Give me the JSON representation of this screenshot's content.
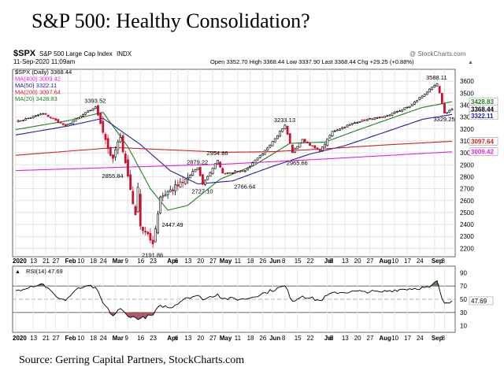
{
  "page": {
    "title": "S&P 500: Healthy Consolidation?",
    "source": "Source: Gerring Capital Partners, StockCharts.com"
  },
  "header": {
    "symbol": "$SPX",
    "description": "S&P 500 Large Cap Index",
    "exchange": "INDX",
    "watermark": "@ StockCharts.com",
    "date_time": "11-Sep-2020 11:09am",
    "quote": "Open 3352.70  High 3368.44  Low 3337.90  Last 3368.44  Chg +29.25 (+0.88%)",
    "ticker_arrow": "▲",
    "legend": [
      {
        "text": "$SPX (Daily) 3368.44",
        "color": "#000000"
      },
      {
        "text": "MA(400) 3009.42",
        "color": "#e020e0"
      },
      {
        "text": "MA(50) 3322.11",
        "color": "#2020a0"
      },
      {
        "text": "MA(200) 3097.64",
        "color": "#d02020"
      },
      {
        "text": "MA(20) 3428.83",
        "color": "#208020"
      }
    ]
  },
  "colors": {
    "up": "#000000",
    "down": "#cc1030",
    "ma20": "#208020",
    "ma50": "#2020a0",
    "ma200": "#d02020",
    "ma400": "#e020e0",
    "rsi_fill_over": "#4a6a40",
    "rsi_fill_under": "#a04050"
  },
  "chart_data": [
    {
      "type": "candlestick",
      "title": "$SPX (Daily)",
      "ylim": [
        2130,
        3700
      ],
      "yticks": [
        2200,
        2300,
        2400,
        2500,
        2600,
        2700,
        2800,
        2900,
        3000,
        3100,
        3200,
        3300,
        3400,
        3500,
        3600
      ],
      "xlabels": [
        "2020",
        "13",
        "21",
        "27",
        "Feb",
        "10",
        "18",
        "24",
        "Mar",
        "9",
        "16",
        "23",
        "Apr",
        "6",
        "13",
        "20",
        "27",
        "May",
        "11",
        "18",
        "26",
        "Jun",
        "8",
        "15",
        "22",
        "Jul",
        "6",
        "13",
        "20",
        "27",
        "Aug",
        "10",
        "17",
        "24",
        "Sep",
        "8"
      ],
      "bold_xlabels": [
        "2020",
        "Feb",
        "Mar",
        "Apr",
        "May",
        "Jun",
        "Jul",
        "Aug",
        "Sep"
      ],
      "x_axis": "trading days from 2 Jan 2020 to 11 Sep 2020",
      "anchors": [
        {
          "date": "2020-01-02",
          "close": 3258
        },
        {
          "date": "2020-01-17",
          "close": 3329
        },
        {
          "date": "2020-01-31",
          "close": 3225
        },
        {
          "date": "2020-02-19",
          "close": 3386
        },
        {
          "date": "2020-02-27",
          "close": 2979
        },
        {
          "date": "2020-02-28",
          "close": 2954
        },
        {
          "date": "2020-03-04",
          "close": 3130
        },
        {
          "date": "2020-03-12",
          "close": 2480
        },
        {
          "date": "2020-03-13",
          "close": 2711
        },
        {
          "date": "2020-03-16",
          "close": 2386
        },
        {
          "date": "2020-03-23",
          "close": 2237
        },
        {
          "date": "2020-03-26",
          "close": 2630
        },
        {
          "date": "2020-04-08",
          "close": 2750
        },
        {
          "date": "2020-04-17",
          "close": 2875
        },
        {
          "date": "2020-04-21",
          "close": 2736
        },
        {
          "date": "2020-04-29",
          "close": 2939
        },
        {
          "date": "2020-05-01",
          "close": 2830
        },
        {
          "date": "2020-05-14",
          "close": 2852
        },
        {
          "date": "2020-05-26",
          "close": 2991
        },
        {
          "date": "2020-06-08",
          "close": 3232
        },
        {
          "date": "2020-06-11",
          "close": 3002
        },
        {
          "date": "2020-06-17",
          "close": 3113
        },
        {
          "date": "2020-06-26",
          "close": 3009
        },
        {
          "date": "2020-07-06",
          "close": 3180
        },
        {
          "date": "2020-07-22",
          "close": 3276
        },
        {
          "date": "2020-08-03",
          "close": 3295
        },
        {
          "date": "2020-08-18",
          "close": 3390
        },
        {
          "date": "2020-09-02",
          "close": 3580
        },
        {
          "date": "2020-09-08",
          "close": 3332
        },
        {
          "date": "2020-09-11",
          "close": 3368
        }
      ],
      "annotations": [
        {
          "label": "3393.52",
          "date": "2020-02-19",
          "value": 3393.52,
          "pos": "above"
        },
        {
          "label": "2855.84",
          "date": "2020-02-28",
          "value": 2855.84,
          "pos": "below"
        },
        {
          "label": "2191.86",
          "date": "2020-03-23",
          "value": 2191.86,
          "pos": "below"
        },
        {
          "label": "2447.49",
          "date": "2020-04-02",
          "value": 2447.49,
          "pos": "below"
        },
        {
          "label": "2879.22",
          "date": "2020-04-17",
          "value": 2879.22,
          "pos": "above"
        },
        {
          "label": "2727.10",
          "date": "2020-04-21",
          "value": 2727.1,
          "pos": "below"
        },
        {
          "label": "2954.86",
          "date": "2020-04-29",
          "value": 2954.86,
          "pos": "above"
        },
        {
          "label": "2766.64",
          "date": "2020-05-14",
          "value": 2766.64,
          "pos": "below"
        },
        {
          "label": "3233.13",
          "date": "2020-06-08",
          "value": 3233.13,
          "pos": "above"
        },
        {
          "label": "2965.66",
          "date": "2020-06-15",
          "value": 2965.66,
          "pos": "below"
        },
        {
          "label": "3588.11",
          "date": "2020-09-02",
          "value": 3588.11,
          "pos": "above"
        },
        {
          "label": "3329.25",
          "date": "2020-09-08",
          "value": 3329.25,
          "pos": "below"
        }
      ],
      "series": [
        {
          "name": "MA(20)",
          "last": 3428.83,
          "label": "3428.83",
          "points": [
            [
              "2020-01-02",
              3195
            ],
            [
              "2020-02-01",
              3270
            ],
            [
              "2020-02-24",
              3340
            ],
            [
              "2020-03-09",
              3050
            ],
            [
              "2020-03-20",
              2700
            ],
            [
              "2020-03-31",
              2520
            ],
            [
              "2020-04-13",
              2560
            ],
            [
              "2020-04-30",
              2780
            ],
            [
              "2020-05-20",
              2900
            ],
            [
              "2020-06-10",
              3080
            ],
            [
              "2020-06-30",
              3090
            ],
            [
              "2020-07-20",
              3190
            ],
            [
              "2020-08-10",
              3300
            ],
            [
              "2020-08-25",
              3380
            ],
            [
              "2020-09-11",
              3428
            ]
          ]
        },
        {
          "name": "MA(50)",
          "last": 3322.11,
          "label": "3322.11",
          "points": [
            [
              "2020-01-02",
              3150
            ],
            [
              "2020-02-01",
              3225
            ],
            [
              "2020-02-24",
              3290
            ],
            [
              "2020-03-16",
              3070
            ],
            [
              "2020-04-01",
              2850
            ],
            [
              "2020-04-17",
              2740
            ],
            [
              "2020-05-07",
              2765
            ],
            [
              "2020-05-29",
              2880
            ],
            [
              "2020-06-22",
              2990
            ],
            [
              "2020-07-13",
              3060
            ],
            [
              "2020-08-05",
              3180
            ],
            [
              "2020-08-25",
              3280
            ],
            [
              "2020-09-11",
              3322
            ]
          ]
        },
        {
          "name": "MA(200)",
          "last": 3097.64,
          "label": "3097.64",
          "points": [
            [
              "2020-01-02",
              2980
            ],
            [
              "2020-03-01",
              3045
            ],
            [
              "2020-04-01",
              3025
            ],
            [
              "2020-05-01",
              3005
            ],
            [
              "2020-06-01",
              3010
            ],
            [
              "2020-07-01",
              3035
            ],
            [
              "2020-08-01",
              3065
            ],
            [
              "2020-09-11",
              3097
            ]
          ]
        },
        {
          "name": "MA(400)",
          "last": 3009.42,
          "label": "3009.42",
          "points": [
            [
              "2020-01-02",
              2852
            ],
            [
              "2020-03-01",
              2878
            ],
            [
              "2020-05-01",
              2905
            ],
            [
              "2020-07-01",
              2950
            ],
            [
              "2020-09-11",
              3009
            ]
          ]
        }
      ],
      "last_label": "3368.44"
    },
    {
      "type": "line",
      "title": "RSI(14)",
      "series": [
        {
          "name": "RSI(14)",
          "last": 47.69,
          "points": [
            [
              "2020-01-02",
              63
            ],
            [
              "2020-01-10",
              70
            ],
            [
              "2020-01-17",
              73
            ],
            [
              "2020-01-27",
              55
            ],
            [
              "2020-01-31",
              48
            ],
            [
              "2020-02-06",
              64
            ],
            [
              "2020-02-12",
              70
            ],
            [
              "2020-02-19",
              68
            ],
            [
              "2020-02-24",
              44
            ],
            [
              "2020-02-28",
              25
            ],
            [
              "2020-03-04",
              36
            ],
            [
              "2020-03-09",
              24
            ],
            [
              "2020-03-16",
              21
            ],
            [
              "2020-03-23",
              26
            ],
            [
              "2020-03-26",
              41
            ],
            [
              "2020-04-01",
              37
            ],
            [
              "2020-04-09",
              52
            ],
            [
              "2020-04-17",
              56
            ],
            [
              "2020-04-21",
              49
            ],
            [
              "2020-04-29",
              58
            ],
            [
              "2020-05-01",
              51
            ],
            [
              "2020-05-14",
              50
            ],
            [
              "2020-05-27",
              60
            ],
            [
              "2020-06-08",
              70
            ],
            [
              "2020-06-11",
              47
            ],
            [
              "2020-06-17",
              55
            ],
            [
              "2020-06-26",
              48
            ],
            [
              "2020-07-06",
              60
            ],
            [
              "2020-07-22",
              62
            ],
            [
              "2020-07-31",
              61
            ],
            [
              "2020-08-12",
              65
            ],
            [
              "2020-08-28",
              68
            ],
            [
              "2020-09-02",
              78
            ],
            [
              "2020-09-04",
              51
            ],
            [
              "2020-09-08",
              44
            ],
            [
              "2020-09-11",
              47.69
            ]
          ]
        }
      ],
      "ylim": [
        0,
        100
      ],
      "yticks": [
        90,
        70,
        50,
        30,
        10
      ],
      "reference_lines": [
        70,
        30
      ],
      "dashed_line": 50,
      "last_label": "47.69",
      "legend_text": "RSI(14) 47.69",
      "xlabels": [
        "2020",
        "13",
        "21",
        "27",
        "Feb",
        "10",
        "18",
        "24",
        "Mar",
        "9",
        "16",
        "23",
        "Apr",
        "6",
        "13",
        "20",
        "27",
        "May",
        "11",
        "18",
        "26",
        "Jun",
        "8",
        "15",
        "22",
        "Jul",
        "6",
        "13",
        "20",
        "27",
        "Aug",
        "10",
        "17",
        "24",
        "Sep",
        "8"
      ]
    }
  ]
}
